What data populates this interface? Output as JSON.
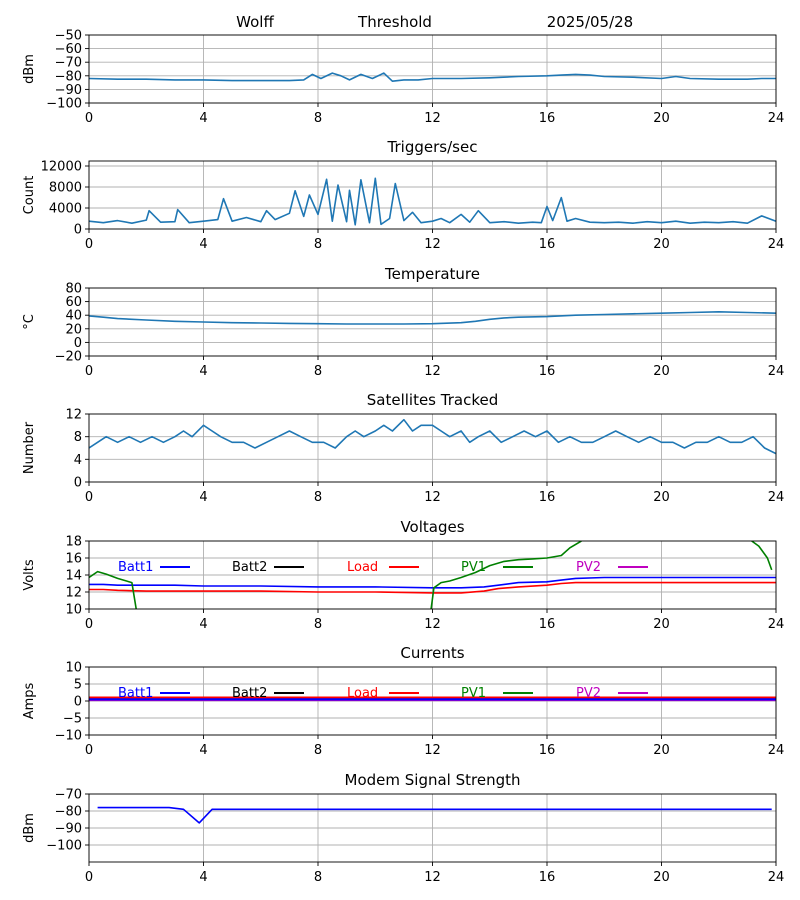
{
  "header": {
    "station": "Wolff",
    "mode": "Threshold",
    "date": "2025/05/28"
  },
  "colors": {
    "default_line": "#1f77b4",
    "grid": "#b0b0b0",
    "batt1": "#0000ff",
    "batt2": "#000000",
    "load": "#ff0000",
    "pv1": "#008000",
    "pv2": "#bf00bf"
  },
  "chart_data": [
    {
      "type": "line",
      "title": "",
      "ylabel": "dBm",
      "xlim": [
        0,
        24
      ],
      "xticks": [
        "0",
        "4",
        "8",
        "12",
        "16",
        "20",
        "24"
      ],
      "ylim": [
        -100,
        -50
      ],
      "yticks": [
        "−100",
        "−90",
        "−80",
        "−70",
        "−60",
        "−50"
      ],
      "grid": true,
      "series": [
        {
          "x": [
            0,
            1,
            2,
            3,
            4,
            5,
            6,
            7,
            7.5,
            7.8,
            8.1,
            8.5,
            8.8,
            9.1,
            9.5,
            9.9,
            10.3,
            10.6,
            11,
            11.5,
            12,
            13,
            14,
            15,
            16,
            16.5,
            17,
            17.5,
            18,
            19,
            20,
            20.5,
            21,
            22,
            23,
            23.5,
            24
          ],
          "y": [
            -82,
            -82.5,
            -82.5,
            -83,
            -83,
            -83.5,
            -83.5,
            -83.5,
            -83,
            -79,
            -82,
            -78,
            -80,
            -83,
            -79,
            -82,
            -78,
            -84,
            -83,
            -83,
            -82,
            -82,
            -81.5,
            -80.5,
            -80,
            -79.5,
            -79,
            -79.5,
            -80.5,
            -81,
            -82,
            -80.5,
            -82,
            -82.5,
            -82.5,
            -82,
            -82
          ]
        }
      ]
    },
    {
      "type": "line",
      "title": "Triggers/sec",
      "ylabel": "Count",
      "xlim": [
        0,
        24
      ],
      "xticks": [
        "0",
        "4",
        "8",
        "12",
        "16",
        "20",
        "24"
      ],
      "ylim": [
        0,
        13000
      ],
      "yticks": [
        "0",
        "4000",
        "8000",
        "12000"
      ],
      "grid": true,
      "series": [
        {
          "x": [
            0,
            0.5,
            1,
            1.5,
            2,
            2.1,
            2.5,
            3,
            3.1,
            3.5,
            4,
            4.5,
            4.7,
            5,
            5.5,
            6,
            6.2,
            6.5,
            7,
            7.2,
            7.5,
            7.7,
            8,
            8.3,
            8.5,
            8.7,
            9,
            9.1,
            9.3,
            9.5,
            9.8,
            10,
            10.2,
            10.5,
            10.7,
            11,
            11.3,
            11.6,
            12,
            12.3,
            12.6,
            13,
            13.3,
            13.6,
            14,
            14.5,
            15,
            15.5,
            15.8,
            16,
            16.2,
            16.5,
            16.7,
            17,
            17.5,
            18,
            18.5,
            19,
            19.5,
            20,
            20.5,
            21,
            21.5,
            22,
            22.5,
            23,
            23.5,
            24
          ],
          "y": [
            1500,
            1200,
            1600,
            1100,
            1700,
            3500,
            1300,
            1400,
            3700,
            1200,
            1500,
            1800,
            5800,
            1500,
            2200,
            1400,
            3500,
            1800,
            3000,
            7300,
            2400,
            6500,
            2800,
            9500,
            1500,
            8400,
            1400,
            7400,
            800,
            9400,
            1200,
            9700,
            900,
            2000,
            8700,
            1600,
            3200,
            1200,
            1500,
            2000,
            1200,
            2800,
            1300,
            3500,
            1200,
            1400,
            1100,
            1300,
            1200,
            4300,
            1600,
            6000,
            1500,
            2000,
            1300,
            1200,
            1300,
            1100,
            1400,
            1200,
            1500,
            1100,
            1300,
            1200,
            1400,
            1100,
            2500,
            1500
          ]
        }
      ]
    },
    {
      "type": "line",
      "title": "Temperature",
      "ylabel": "°C",
      "xlim": [
        0,
        24
      ],
      "xticks": [
        "0",
        "4",
        "8",
        "12",
        "16",
        "20",
        "24"
      ],
      "ylim": [
        -20,
        80
      ],
      "yticks": [
        "−20",
        "0",
        "20",
        "40",
        "60",
        "80"
      ],
      "grid": true,
      "series": [
        {
          "x": [
            0,
            0.5,
            1,
            2,
            3,
            4,
            5,
            6,
            7,
            8,
            9,
            10,
            11,
            12,
            13,
            13.5,
            14,
            14.5,
            15,
            16,
            17,
            18,
            19,
            20,
            21,
            22,
            23,
            24
          ],
          "y": [
            39,
            37,
            35,
            33,
            31,
            30,
            29,
            28.5,
            28,
            27.5,
            27,
            27,
            27,
            27.5,
            29,
            31,
            34,
            36,
            37,
            38,
            40,
            41,
            42,
            43,
            44,
            45,
            44,
            43
          ]
        }
      ]
    },
    {
      "type": "line",
      "title": "Satellites Tracked",
      "ylabel": "Number",
      "xlim": [
        0,
        24
      ],
      "xticks": [
        "0",
        "4",
        "8",
        "12",
        "16",
        "20",
        "24"
      ],
      "ylim": [
        0,
        12
      ],
      "yticks": [
        "0",
        "4",
        "8",
        "12"
      ],
      "grid": true,
      "series": [
        {
          "x": [
            0,
            0.3,
            0.6,
            1,
            1.4,
            1.8,
            2.2,
            2.6,
            3,
            3.3,
            3.6,
            4,
            4.3,
            4.6,
            5,
            5.4,
            5.8,
            6.2,
            6.6,
            7,
            7.4,
            7.8,
            8.2,
            8.6,
            9,
            9.3,
            9.6,
            10,
            10.3,
            10.6,
            11,
            11.3,
            11.6,
            12,
            12.3,
            12.6,
            13,
            13.3,
            13.6,
            14,
            14.4,
            14.8,
            15.2,
            15.6,
            16,
            16.4,
            16.8,
            17.2,
            17.6,
            18,
            18.4,
            18.8,
            19.2,
            19.6,
            20,
            20.4,
            20.8,
            21.2,
            21.6,
            22,
            22.4,
            22.8,
            23.2,
            23.6,
            24
          ],
          "y": [
            6,
            7,
            8,
            7,
            8,
            7,
            8,
            7,
            8,
            9,
            8,
            10,
            9,
            8,
            7,
            7,
            6,
            7,
            8,
            9,
            8,
            7,
            7,
            6,
            8,
            9,
            8,
            9,
            10,
            9,
            11,
            9,
            10,
            10,
            9,
            8,
            9,
            7,
            8,
            9,
            7,
            8,
            9,
            8,
            9,
            7,
            8,
            7,
            7,
            8,
            9,
            8,
            7,
            8,
            7,
            7,
            6,
            7,
            7,
            8,
            7,
            7,
            8,
            6,
            5
          ]
        }
      ]
    },
    {
      "type": "line",
      "title": "Voltages",
      "ylabel": "Volts",
      "xlim": [
        0,
        24
      ],
      "xticks": [
        "0",
        "4",
        "8",
        "12",
        "16",
        "20",
        "24"
      ],
      "ylim": [
        10,
        18
      ],
      "yticks": [
        "10",
        "12",
        "14",
        "16",
        "18"
      ],
      "grid": true,
      "legend": {
        "placement": "top",
        "entries": [
          "Batt1",
          "Batt2",
          "Load",
          "PV1",
          "PV2"
        ]
      },
      "series": [
        {
          "name": "Batt1",
          "color": "#0000ff",
          "x": [
            0,
            0.5,
            1,
            1.5,
            2,
            3,
            4,
            6,
            8,
            10,
            12,
            13,
            13.8,
            14.3,
            15,
            16,
            16.5,
            17,
            18,
            20,
            22,
            24
          ],
          "y": [
            12.9,
            12.9,
            12.8,
            12.8,
            12.8,
            12.8,
            12.7,
            12.7,
            12.6,
            12.6,
            12.5,
            12.5,
            12.6,
            12.8,
            13.1,
            13.2,
            13.4,
            13.6,
            13.7,
            13.7,
            13.7,
            13.7
          ]
        },
        {
          "name": "Load",
          "color": "#ff0000",
          "x": [
            0,
            0.5,
            1,
            2,
            4,
            6,
            8,
            10,
            12,
            13,
            13.8,
            14.3,
            15,
            16,
            16.5,
            17,
            18,
            20,
            22,
            24
          ],
          "y": [
            12.3,
            12.3,
            12.2,
            12.1,
            12.1,
            12.1,
            12.0,
            12.0,
            11.9,
            11.9,
            12.1,
            12.4,
            12.6,
            12.8,
            13.0,
            13.1,
            13.1,
            13.1,
            13.1,
            13.1
          ]
        },
        {
          "name": "PV1",
          "color": "#008000",
          "x": [
            0,
            0.3,
            0.6,
            1,
            1.5,
            1.65
          ],
          "y": [
            13.7,
            14.4,
            14.1,
            13.6,
            13.1,
            10
          ]
        },
        {
          "name": "PV1",
          "color": "#008000",
          "x": [
            11.95,
            12.05,
            12.3,
            12.6,
            13,
            13.5,
            14,
            14.5,
            15,
            15.5,
            16,
            16.5,
            16.8,
            17.2
          ],
          "y": [
            10,
            12.5,
            13.1,
            13.3,
            13.7,
            14.3,
            15.1,
            15.6,
            15.8,
            15.9,
            16.0,
            16.3,
            17.2,
            18
          ]
        },
        {
          "name": "PV1",
          "color": "#008000",
          "x": [
            23.15,
            23.4,
            23.7,
            23.85
          ],
          "y": [
            18,
            17.4,
            16.0,
            14.6
          ]
        }
      ]
    },
    {
      "type": "line",
      "title": "Currents",
      "ylabel": "Amps",
      "xlim": [
        0,
        24
      ],
      "xticks": [
        "0",
        "4",
        "8",
        "12",
        "16",
        "20",
        "24"
      ],
      "ylim": [
        -10,
        10
      ],
      "yticks": [
        "−10",
        "−5",
        "0",
        "5",
        "10"
      ],
      "grid": true,
      "legend": {
        "placement": "top",
        "entries": [
          "Batt1",
          "Batt2",
          "Load",
          "PV1",
          "PV2"
        ]
      },
      "series": [
        {
          "name": "Load",
          "color": "#ff0000",
          "x": [
            0,
            24
          ],
          "y": [
            1.0,
            1.0
          ]
        },
        {
          "name": "PV2",
          "color": "#bf00bf",
          "x": [
            0,
            24
          ],
          "y": [
            0.3,
            0.3
          ]
        },
        {
          "name": "Batt1",
          "color": "#0000ff",
          "x": [
            0,
            24
          ],
          "y": [
            0.5,
            0.5
          ]
        }
      ]
    },
    {
      "type": "line",
      "title": "Modem Signal Strength",
      "ylabel": "dBm",
      "xlim": [
        0,
        24
      ],
      "xticks": [
        "0",
        "4",
        "8",
        "12",
        "16",
        "20",
        "24"
      ],
      "ylim": [
        -110,
        -70
      ],
      "yticks": [
        "−100",
        "−90",
        "−80",
        "−70"
      ],
      "grid": true,
      "series": [
        {
          "color": "#0000ff",
          "x": [
            0.3,
            1,
            2,
            2.8,
            3.3,
            3.85,
            4.3,
            5,
            8,
            12,
            16,
            20,
            23.85
          ],
          "y": [
            -78,
            -78,
            -78,
            -78,
            -79,
            -87,
            -79,
            -79,
            -79,
            -79,
            -79,
            -79,
            -79
          ]
        }
      ]
    }
  ]
}
